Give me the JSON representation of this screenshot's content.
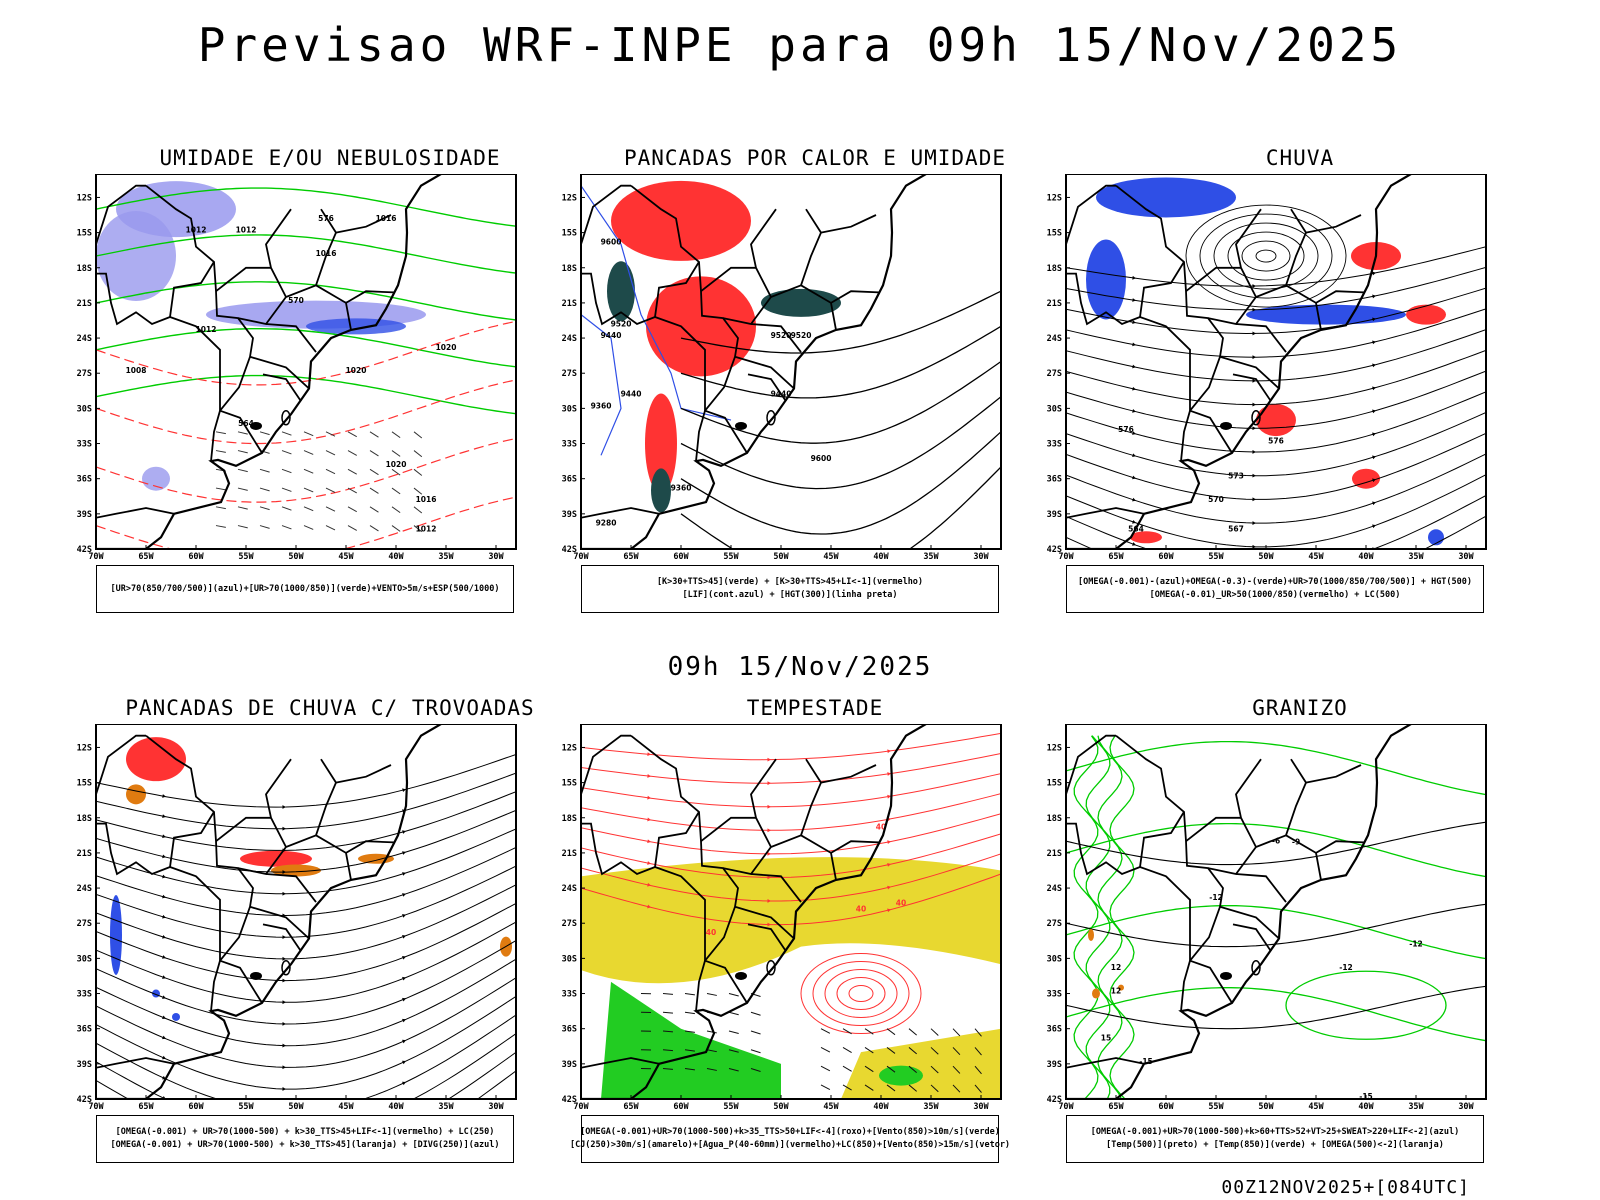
{
  "header": {
    "title": "Previsao WRF-INPE  para 09h 15/Nov/2025",
    "mid_title": "09h 15/Nov/2025",
    "footer": "00Z12NOV2025+[084UTC]"
  },
  "axes": {
    "lat_labels": [
      "12S",
      "15S",
      "18S",
      "21S",
      "24S",
      "27S",
      "30S",
      "33S",
      "36S",
      "39S",
      "42S"
    ],
    "lon_labels": [
      "70W",
      "65W",
      "60W",
      "55W",
      "50W",
      "45W",
      "40W",
      "35W",
      "30W"
    ]
  },
  "colors": {
    "blue": "#2f4fe6",
    "lightblue": "#9999ee",
    "green": "#00cc00",
    "red": "#ff3333",
    "darkteal": "#1e4a4a",
    "orange": "#e07b10",
    "yellow": "#e8d830",
    "brightgreen": "#22cc22"
  },
  "panels": [
    {
      "id": "umidade",
      "title": "UMIDADE E/OU NEBULOSIDADE",
      "legend": [
        "[UR>70(850/700/500)](azul)+[UR>70(1000/850)](verde)+VENTO>5m/s+ESP(500/1000)"
      ],
      "contour_labels": [
        "1012",
        "1012",
        "1016",
        "1020",
        "1020",
        "1016",
        "1012",
        "1008",
        "1020",
        "1016",
        "1012",
        "570",
        "576",
        "564"
      ]
    },
    {
      "id": "pancadas-calor",
      "title": "PANCADAS POR CALOR E UMIDADE",
      "legend": [
        "[K>30+TTS>45](verde) + [K>30+TTS>45+LI<-1](vermelho)",
        "[LIF](cont.azul) + [HGT(300)](linha preta)"
      ],
      "contour_labels": [
        "9600",
        "9520",
        "9440",
        "9360",
        "9280",
        "9520",
        "9440",
        "9600",
        "9520",
        "9440",
        "9360"
      ]
    },
    {
      "id": "chuva",
      "title": "CHUVA",
      "legend": [
        "[OMEGA(-0.001)-(azul)+OMEGA(-0.3)-(verde)+UR>70(1000/850/700/500)] + HGT(500)",
        "[OMEGA(-0.01)_UR>50(1000/850)(vermelho) + LC(500)"
      ],
      "contour_labels": [
        "576",
        "573",
        "570",
        "567",
        "564",
        "576"
      ]
    },
    {
      "id": "pancadas-trovoadas",
      "title": "PANCADAS DE CHUVA C/ TROVOADAS",
      "legend": [
        "[OMEGA(-0.001) + UR>70(1000-500) + k>30_TTS>45+LIF<-1](vermelho) + LC(250)",
        "[OMEGA(-0.001) + UR>70(1000-500) + k>30_TTS>45](laranja) + [DIVG(250)](azul)"
      ],
      "contour_labels": []
    },
    {
      "id": "tempestade",
      "title": "TEMPESTADE",
      "legend": [
        "[OMEGA(-0.001)+UR>70(1000-500)+k>35_TTS>50+LIF<-4](roxo)+[Vento(850)>10m/s](verde)",
        "[CJ(250)>30m/s](amarelo)+[Agua_P(40-60mm)](vermelho)+LC(850)+[Vento(850)>15m/s](vetor)"
      ],
      "contour_labels": [
        "40",
        "40",
        "40",
        "40"
      ]
    },
    {
      "id": "granizo",
      "title": "GRANIZO",
      "legend": [
        "[OMEGA(-0.001)+UR>70(1000-500)+k>60+TTS>52+VT>25+SWEAT>220+LIF<-2](azul)",
        "[Temp(500)](preto) + [Temp(850)](verde) + [OMEGA(500)<-2](laranja)"
      ],
      "contour_labels": [
        "-6",
        "-9",
        "-12",
        "-12",
        "-12",
        "-15",
        "-15",
        "12",
        "12",
        "15"
      ]
    }
  ]
}
